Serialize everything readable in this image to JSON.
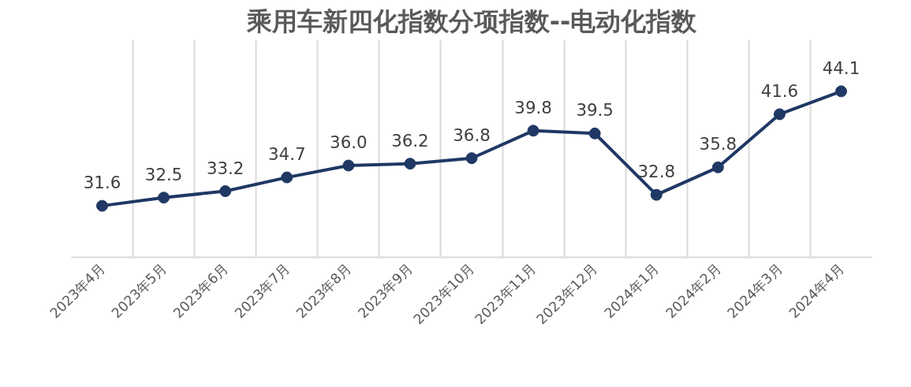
{
  "chart_data": {
    "type": "line",
    "title": "乘用车新四化指数分项指数--电动化指数",
    "categories": [
      "2023年4月",
      "2023年5月",
      "2023年6月",
      "2023年7月",
      "2023年8月",
      "2023年9月",
      "2023年10月",
      "2023年11月",
      "2023年12月",
      "2024年1月",
      "2024年2月",
      "2024年3月",
      "2024年4月"
    ],
    "series": [
      {
        "color": "#1f3864",
        "values": [
          31.6,
          32.5,
          33.2,
          34.7,
          36.0,
          36.2,
          36.8,
          39.8,
          39.5,
          32.8,
          35.8,
          41.6,
          44.1
        ],
        "value_labels": [
          "31.6",
          "32.5",
          "33.2",
          "34.7",
          "36.0",
          "36.2",
          "36.8",
          "39.8",
          "39.5",
          "32.8",
          "35.8",
          "41.6",
          "44.1"
        ]
      }
    ],
    "grid": "x",
    "marker": "circle",
    "line_style": "solid",
    "tick_labels": "x"
  }
}
